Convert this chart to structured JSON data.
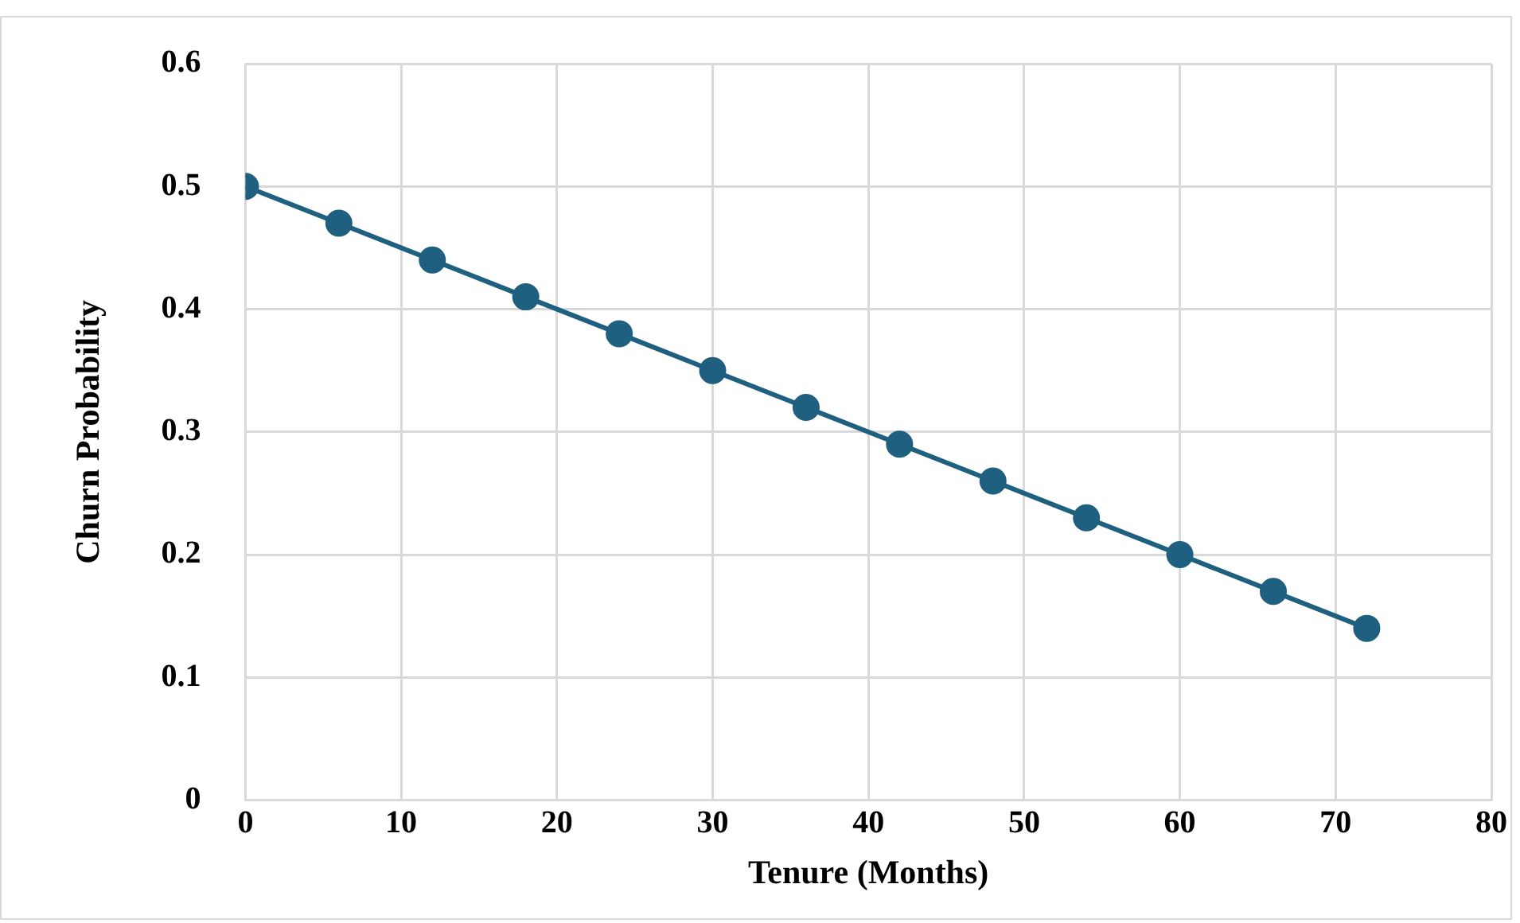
{
  "chart_data": {
    "type": "line",
    "xlabel": "Tenure (Months)",
    "ylabel": "Churn Probability",
    "x": [
      0,
      6,
      12,
      18,
      24,
      30,
      36,
      42,
      48,
      54,
      60,
      66,
      72
    ],
    "series": [
      {
        "color": "#1f5f7f",
        "values": [
          0.5,
          0.47,
          0.44,
          0.41,
          0.38,
          0.35,
          0.32,
          0.29,
          0.26,
          0.23,
          0.2,
          0.17,
          0.14
        ]
      }
    ],
    "xlim": [
      0,
      80
    ],
    "xticks": [
      0,
      10,
      20,
      30,
      40,
      50,
      60,
      70,
      80
    ],
    "ylim": [
      0,
      0.6
    ],
    "yticks": [
      0,
      0.1,
      0.2,
      0.3,
      0.4,
      0.5,
      0.6
    ],
    "grid": true,
    "legend": false,
    "marker": "circle",
    "line_style": "solid"
  }
}
